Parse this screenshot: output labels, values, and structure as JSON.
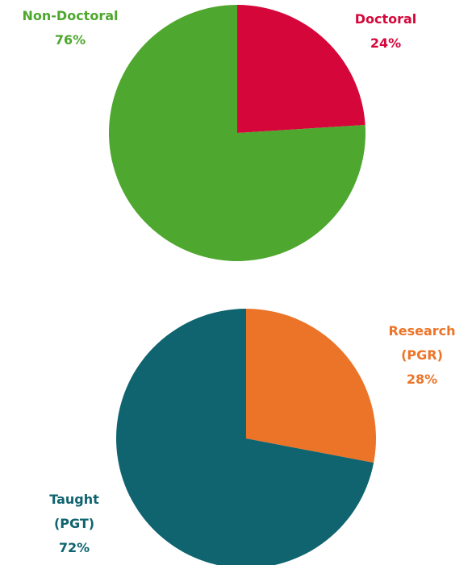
{
  "chart_data": [
    {
      "type": "pie",
      "categories": [
        "Doctoral",
        "Non-Doctoral"
      ],
      "values": [
        24,
        76
      ],
      "value_labels": [
        "24%",
        "76%"
      ],
      "colors": [
        "#d5073a",
        "#4ea72e"
      ]
    },
    {
      "type": "pie",
      "categories": [
        "Research (PGR)",
        "Taught (PGT)"
      ],
      "values": [
        28,
        72
      ],
      "value_labels": [
        "28%",
        "72%"
      ],
      "colors": [
        "#ec7428",
        "#0f6470"
      ]
    }
  ]
}
